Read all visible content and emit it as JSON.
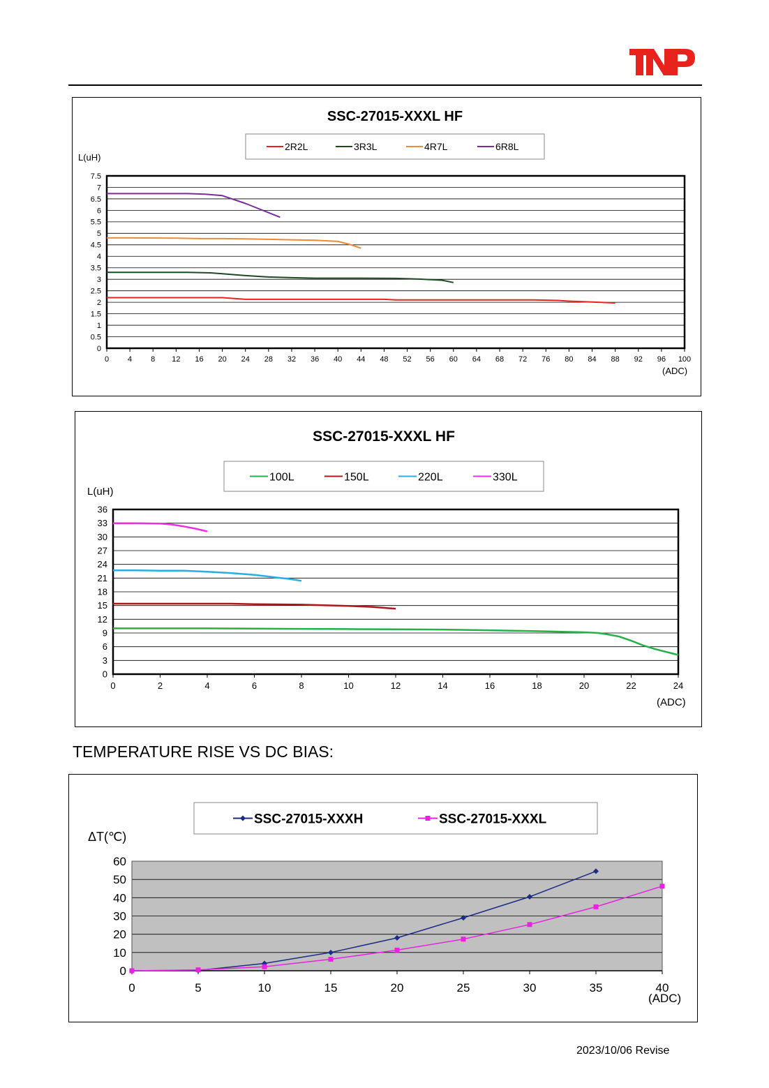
{
  "header": {
    "logo_text": "TNP",
    "logo_color": "#e8231d"
  },
  "section_heading": "TEMPERATURE RISE VS DC BIAS:",
  "footer_text": "2023/10/06 Revise",
  "chart_data": [
    {
      "type": "line",
      "title": "SSC-27015-XXXL HF",
      "ylabel": "L(uH)",
      "xlabel": "(ADC)",
      "xlim": [
        0,
        100
      ],
      "ylim": [
        0,
        7.5
      ],
      "xticks": [
        0,
        4,
        8,
        12,
        16,
        20,
        24,
        28,
        32,
        36,
        40,
        44,
        48,
        52,
        56,
        60,
        64,
        68,
        72,
        76,
        80,
        84,
        88,
        92,
        96,
        100
      ],
      "yticks": [
        0,
        0.5,
        1,
        1.5,
        2,
        2.5,
        3,
        3.5,
        4,
        4.5,
        5,
        5.5,
        6,
        6.5,
        7,
        7.5
      ],
      "grid": true,
      "legend_position": "top-center",
      "series": [
        {
          "name": "2R2L",
          "color": "#e8231d",
          "x": [
            0,
            10,
            20,
            24,
            30,
            40,
            48,
            50,
            60,
            70,
            74,
            78,
            80,
            84,
            88
          ],
          "y": [
            2.2,
            2.2,
            2.2,
            2.13,
            2.13,
            2.13,
            2.13,
            2.1,
            2.1,
            2.1,
            2.1,
            2.08,
            2.05,
            2.01,
            1.97
          ]
        },
        {
          "name": "3R3L",
          "color": "#1e4a23",
          "x": [
            0,
            10,
            14,
            18,
            20,
            24,
            28,
            32,
            36,
            40,
            44,
            50,
            54,
            58,
            60
          ],
          "y": [
            3.3,
            3.3,
            3.3,
            3.28,
            3.24,
            3.16,
            3.1,
            3.07,
            3.05,
            3.05,
            3.05,
            3.04,
            3.01,
            2.96,
            2.86
          ]
        },
        {
          "name": "4R7L",
          "color": "#f08a32",
          "x": [
            0,
            4,
            12,
            16,
            20,
            24,
            28,
            32,
            36,
            40,
            42,
            44
          ],
          "y": [
            4.8,
            4.8,
            4.79,
            4.77,
            4.77,
            4.76,
            4.74,
            4.72,
            4.7,
            4.65,
            4.52,
            4.35
          ]
        },
        {
          "name": "6R8L",
          "color": "#7b2c9b",
          "x": [
            0,
            4,
            8,
            14,
            17,
            20,
            24,
            28,
            30
          ],
          "y": [
            6.73,
            6.73,
            6.73,
            6.73,
            6.7,
            6.64,
            6.3,
            5.9,
            5.7
          ]
        }
      ]
    },
    {
      "type": "line",
      "title": "SSC-27015-XXXL HF",
      "ylabel": "L(uH)",
      "xlabel": "(ADC)",
      "xlim": [
        0,
        24
      ],
      "ylim": [
        0,
        36
      ],
      "xticks": [
        0,
        2,
        4,
        6,
        8,
        10,
        12,
        14,
        16,
        18,
        20,
        22,
        24
      ],
      "yticks": [
        0,
        3,
        6,
        9,
        12,
        15,
        18,
        21,
        24,
        27,
        30,
        33,
        36
      ],
      "grid": true,
      "legend_position": "top-center",
      "series": [
        {
          "name": "100L",
          "color": "#27b04a",
          "x": [
            0,
            2,
            4,
            6,
            8,
            10,
            12,
            14,
            16,
            18,
            20,
            20.6,
            21,
            21.5,
            22,
            22.5,
            23,
            24
          ],
          "y": [
            10,
            10,
            10,
            9.95,
            9.9,
            9.85,
            9.8,
            9.75,
            9.6,
            9.4,
            9.15,
            9.0,
            8.7,
            8.2,
            7.3,
            6.3,
            5.5,
            4.2
          ]
        },
        {
          "name": "150L",
          "color": "#b0171d",
          "x": [
            0,
            2,
            4,
            5,
            6,
            8,
            10,
            11,
            12
          ],
          "y": [
            15.4,
            15.4,
            15.4,
            15.4,
            15.3,
            15.2,
            14.9,
            14.7,
            14.3
          ]
        },
        {
          "name": "220L",
          "color": "#27aee6",
          "x": [
            0,
            1,
            2,
            3,
            4,
            5,
            6,
            7,
            7.5,
            8
          ],
          "y": [
            22.7,
            22.7,
            22.6,
            22.6,
            22.4,
            22.1,
            21.7,
            21.1,
            20.8,
            20.4
          ]
        },
        {
          "name": "330L",
          "color": "#e832e0",
          "x": [
            0,
            1,
            2,
            2.5,
            3,
            3.5,
            4
          ],
          "y": [
            33.0,
            33.0,
            32.9,
            32.7,
            32.3,
            31.8,
            31.2
          ]
        }
      ]
    },
    {
      "type": "line",
      "title": "",
      "ylabel": "ΔT(℃)",
      "xlabel": "(ADC)",
      "xlim": [
        0,
        40
      ],
      "ylim": [
        0,
        60
      ],
      "xticks": [
        0,
        5,
        10,
        15,
        20,
        25,
        30,
        35,
        40
      ],
      "yticks": [
        0,
        10,
        20,
        30,
        40,
        50,
        60
      ],
      "grid": true,
      "plot_background": "#c0c0c0",
      "legend_position": "top-center",
      "series": [
        {
          "name": "SSC-27015-XXXH",
          "color": "#1c2b84",
          "marker": "diamond",
          "x": [
            0,
            5,
            10,
            15,
            20,
            25,
            30,
            35
          ],
          "y": [
            0,
            0.2,
            4,
            10,
            18,
            29,
            40.5,
            54.5
          ]
        },
        {
          "name": "SSC-27015-XXXL",
          "color": "#e822e0",
          "marker": "square",
          "x": [
            0,
            5,
            10,
            15,
            20,
            25,
            30,
            35,
            40
          ],
          "y": [
            0,
            0.5,
            2.2,
            6.3,
            11.3,
            17.3,
            25.3,
            35,
            46.3
          ]
        }
      ]
    }
  ]
}
